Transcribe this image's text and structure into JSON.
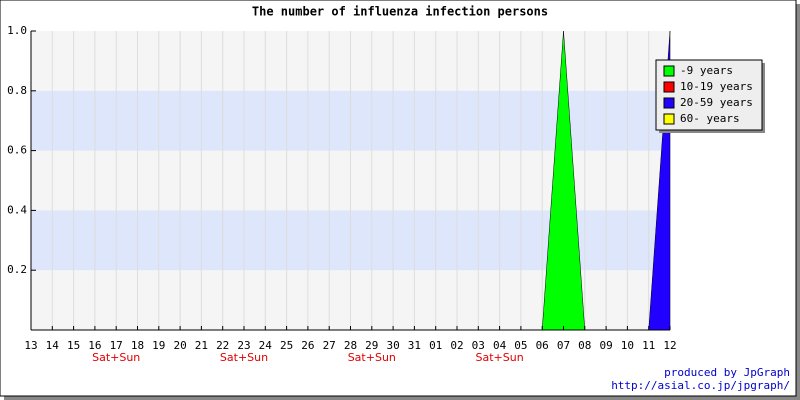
{
  "chart_data": {
    "type": "area",
    "title": "The number of influenza infection persons",
    "categories": [
      "13",
      "14",
      "15",
      "16",
      "17",
      "18",
      "19",
      "20",
      "21",
      "22",
      "23",
      "24",
      "25",
      "26",
      "27",
      "28",
      "29",
      "30",
      "31",
      "01",
      "02",
      "03",
      "04",
      "05",
      "06",
      "07",
      "08",
      "09",
      "10",
      "11",
      "12"
    ],
    "sublabels": [
      null,
      null,
      null,
      null,
      "Sat+Sun",
      null,
      null,
      null,
      null,
      null,
      "Sat+Sun",
      null,
      null,
      null,
      null,
      null,
      "Sat+Sun",
      null,
      null,
      null,
      null,
      null,
      "Sat+Sun",
      null,
      null,
      null,
      null,
      null,
      null,
      null,
      null
    ],
    "series": [
      {
        "name": "-9 years",
        "color": "#00ff00",
        "values": [
          0,
          0,
          0,
          0,
          0,
          0,
          0,
          0,
          0,
          0,
          0,
          0,
          0,
          0,
          0,
          0,
          0,
          0,
          0,
          0,
          0,
          0,
          0,
          0,
          0,
          1,
          0,
          0,
          0,
          0,
          0
        ]
      },
      {
        "name": "10-19 years",
        "color": "#ff0000",
        "values": [
          0,
          0,
          0,
          0,
          0,
          0,
          0,
          0,
          0,
          0,
          0,
          0,
          0,
          0,
          0,
          0,
          0,
          0,
          0,
          0,
          0,
          0,
          0,
          0,
          0,
          0,
          0,
          0,
          0,
          0,
          0
        ]
      },
      {
        "name": "20-59 years",
        "color": "#2200ff",
        "values": [
          0,
          0,
          0,
          0,
          0,
          0,
          0,
          0,
          0,
          0,
          0,
          0,
          0,
          0,
          0,
          0,
          0,
          0,
          0,
          0,
          0,
          0,
          0,
          0,
          0,
          0,
          0,
          0,
          0,
          0,
          1
        ]
      },
      {
        "name": "60- years",
        "color": "#ffff00",
        "values": [
          0,
          0,
          0,
          0,
          0,
          0,
          0,
          0,
          0,
          0,
          0,
          0,
          0,
          0,
          0,
          0,
          0,
          0,
          0,
          0,
          0,
          0,
          0,
          0,
          0,
          0,
          0,
          0,
          0,
          0,
          0
        ]
      }
    ],
    "ylim": [
      0,
      1
    ],
    "yticks": [
      0.2,
      0.4,
      0.6,
      0.8,
      {
        "value": 1,
        "label": "1.0"
      }
    ],
    "grid": true,
    "band_color": "#dde6fb",
    "plot_color": "#f5f5f5",
    "legend": "top-right",
    "footer": [
      "produced by JpGraph",
      "http://asial.co.jp/jpgraph/"
    ]
  }
}
